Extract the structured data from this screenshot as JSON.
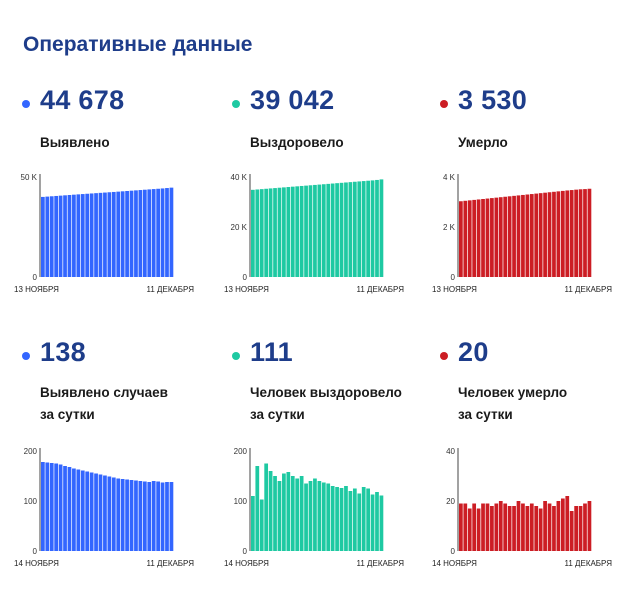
{
  "page": {
    "title": "Оперативные данные"
  },
  "panels": [
    {
      "value": "44 678",
      "label_lines": [
        "Выявлено"
      ],
      "color": "#3366ff",
      "chart_data": {
        "type": "bar",
        "ylim": [
          0,
          50000
        ],
        "yticks": [
          {
            "v": 0,
            "label": "0"
          },
          {
            "v": 50000,
            "label": "50 K"
          }
        ],
        "x_start_label": "13 НОЯБРЯ",
        "x_end_label": "11 ДЕКАБРЯ",
        "values": [
          40040,
          40200,
          40360,
          40520,
          40680,
          40840,
          41000,
          41160,
          41320,
          41470,
          41620,
          41770,
          41920,
          42070,
          42220,
          42370,
          42520,
          42680,
          42840,
          43000,
          43160,
          43320,
          43480,
          43640,
          43800,
          43960,
          44120,
          44280,
          44480,
          44678
        ]
      }
    },
    {
      "value": "39 042",
      "label_lines": [
        "Выздоровело"
      ],
      "color": "#1ec9a2",
      "chart_data": {
        "type": "bar",
        "ylim": [
          0,
          40000
        ],
        "yticks": [
          {
            "v": 0,
            "label": "0"
          },
          {
            "v": 20000,
            "label": "20 K"
          },
          {
            "v": 40000,
            "label": "40 K"
          }
        ],
        "x_start_label": "13 НОЯБРЯ",
        "x_end_label": "11 ДЕКАБРЯ",
        "values": [
          34870,
          35010,
          35150,
          35290,
          35430,
          35570,
          35710,
          35850,
          35990,
          36130,
          36270,
          36410,
          36550,
          36690,
          36830,
          36970,
          37110,
          37250,
          37390,
          37530,
          37670,
          37810,
          37950,
          38090,
          38230,
          38370,
          38510,
          38650,
          38820,
          39042
        ]
      }
    },
    {
      "value": "3 530",
      "label_lines": [
        "Умерло"
      ],
      "color": "#cc1d24",
      "chart_data": {
        "type": "bar",
        "ylim": [
          0,
          4000
        ],
        "yticks": [
          {
            "v": 0,
            "label": "0"
          },
          {
            "v": 2000,
            "label": "2 K"
          },
          {
            "v": 4000,
            "label": "4 K"
          }
        ],
        "x_start_label": "13 НОЯБРЯ",
        "x_end_label": "11 ДЕКАБРЯ",
        "values": [
          3030,
          3048,
          3066,
          3084,
          3102,
          3120,
          3138,
          3156,
          3174,
          3192,
          3210,
          3228,
          3246,
          3264,
          3282,
          3300,
          3318,
          3336,
          3354,
          3372,
          3390,
          3408,
          3426,
          3444,
          3462,
          3478,
          3494,
          3508,
          3516,
          3530
        ]
      }
    },
    {
      "value": "138",
      "label_lines": [
        "Выявлено случаев",
        "за сутки"
      ],
      "color": "#3366ff",
      "chart_data": {
        "type": "bar",
        "ylim": [
          0,
          200
        ],
        "yticks": [
          {
            "v": 0,
            "label": "0"
          },
          {
            "v": 100,
            "label": "100"
          },
          {
            "v": 200,
            "label": "200"
          }
        ],
        "x_start_label": "14 НОЯБРЯ",
        "x_end_label": "11 ДЕКАБРЯ",
        "values": [
          178,
          177,
          176,
          175,
          173,
          170,
          168,
          165,
          163,
          161,
          159,
          157,
          155,
          153,
          151,
          149,
          147,
          145,
          144,
          143,
          142,
          141,
          140,
          139,
          138,
          140,
          139,
          137,
          138,
          138
        ]
      }
    },
    {
      "value": "111",
      "label_lines": [
        "Человек выздоровело",
        "за сутки"
      ],
      "color": "#1ec9a2",
      "chart_data": {
        "type": "bar",
        "ylim": [
          0,
          200
        ],
        "yticks": [
          {
            "v": 0,
            "label": "0"
          },
          {
            "v": 100,
            "label": "100"
          },
          {
            "v": 200,
            "label": "200"
          }
        ],
        "x_start_label": "14 НОЯБРЯ",
        "x_end_label": "11 ДЕКАБРЯ",
        "values": [
          110,
          170,
          103,
          175,
          160,
          150,
          140,
          155,
          158,
          150,
          145,
          150,
          135,
          140,
          145,
          140,
          137,
          135,
          130,
          128,
          126,
          130,
          120,
          125,
          115,
          128,
          125,
          113,
          118,
          111
        ]
      }
    },
    {
      "value": "20",
      "label_lines": [
        "Человек умерло",
        "за сутки"
      ],
      "color": "#cc1d24",
      "chart_data": {
        "type": "bar",
        "ylim": [
          0,
          40
        ],
        "yticks": [
          {
            "v": 0,
            "label": "0"
          },
          {
            "v": 20,
            "label": "20"
          },
          {
            "v": 40,
            "label": "40"
          }
        ],
        "x_start_label": "14 НОЯБРЯ",
        "x_end_label": "11 ДЕКАБРЯ",
        "values": [
          19,
          19,
          17,
          19,
          17,
          19,
          19,
          18,
          19,
          20,
          19,
          18,
          18,
          20,
          19,
          18,
          19,
          18,
          17,
          20,
          19,
          18,
          20,
          21,
          22,
          16,
          18,
          18,
          19,
          20
        ]
      }
    }
  ]
}
